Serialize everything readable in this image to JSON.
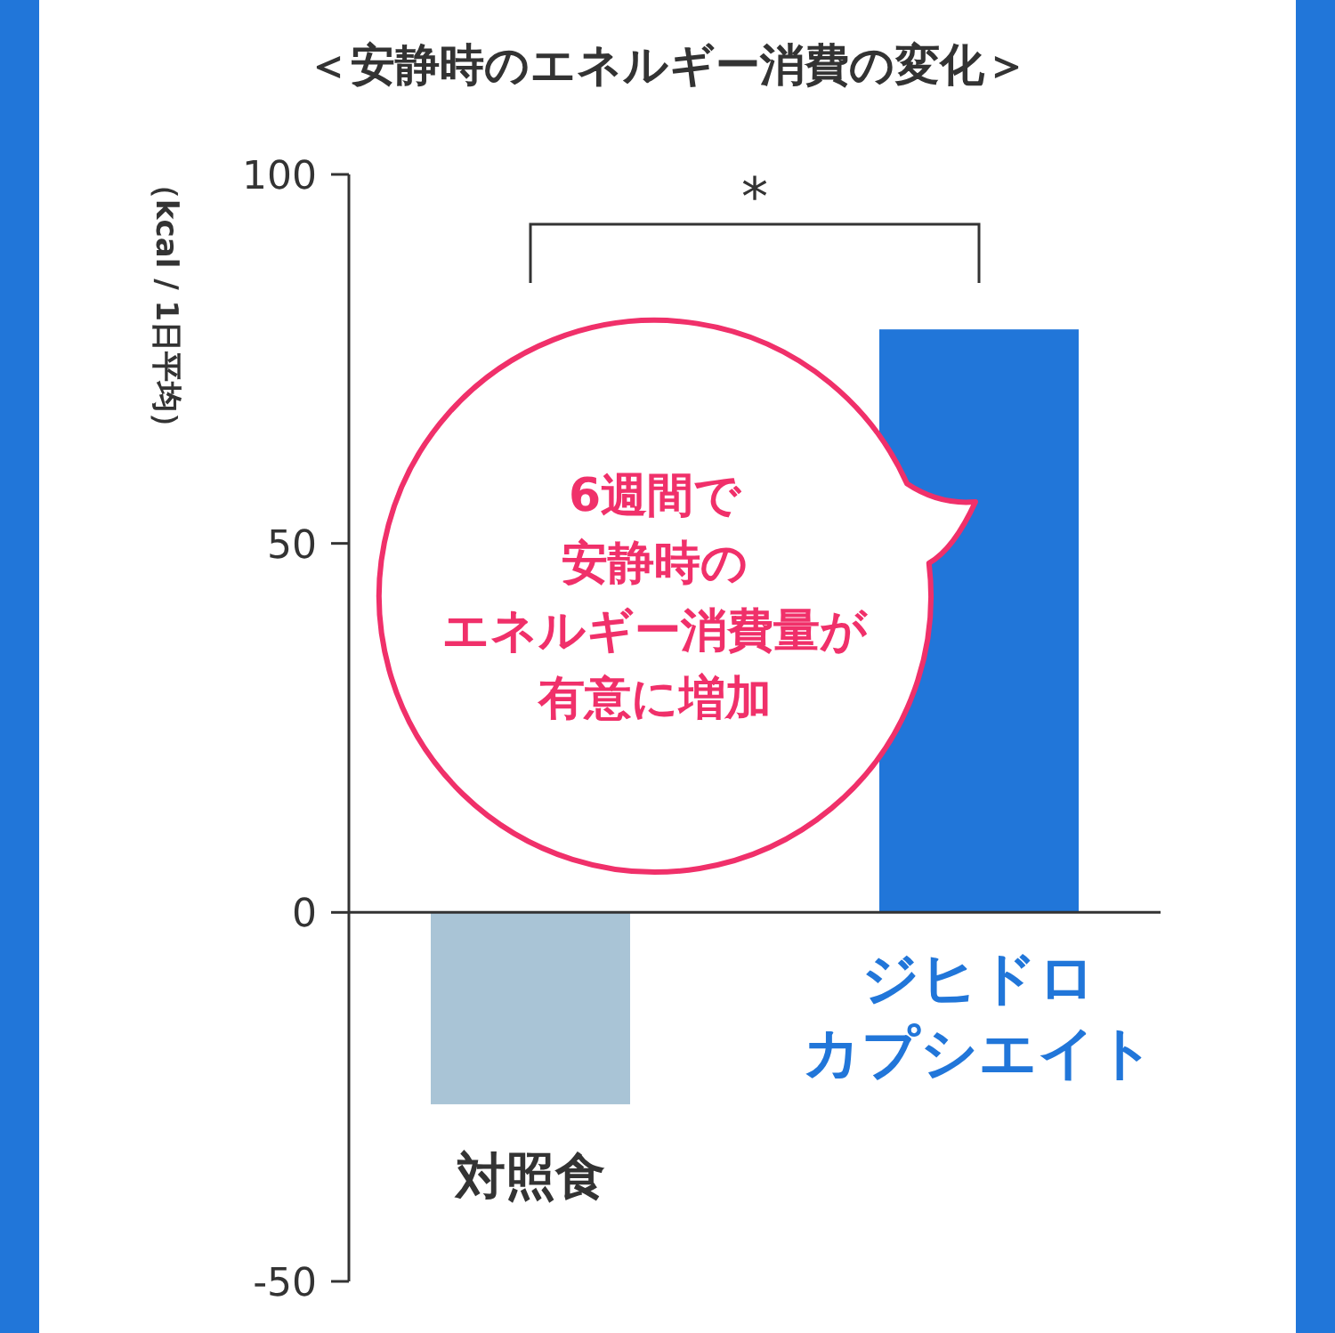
{
  "chart_data": {
    "type": "bar",
    "title": "＜安静時のエネルギー消費の変化＞",
    "ylabel": "（kcal / 1日平均）",
    "categories": [
      "対照食",
      "ジヒドロカプシエイト"
    ],
    "values": [
      -26,
      79
    ],
    "colors": [
      "#a9c4d6",
      "#2176d9"
    ],
    "ylim": [
      -50,
      100
    ],
    "yticks": [
      -50,
      0,
      50,
      100
    ],
    "annotations": [
      "*",
      "6週間で",
      "安静時の",
      "エネルギー消費量が",
      "有意に増加"
    ]
  }
}
